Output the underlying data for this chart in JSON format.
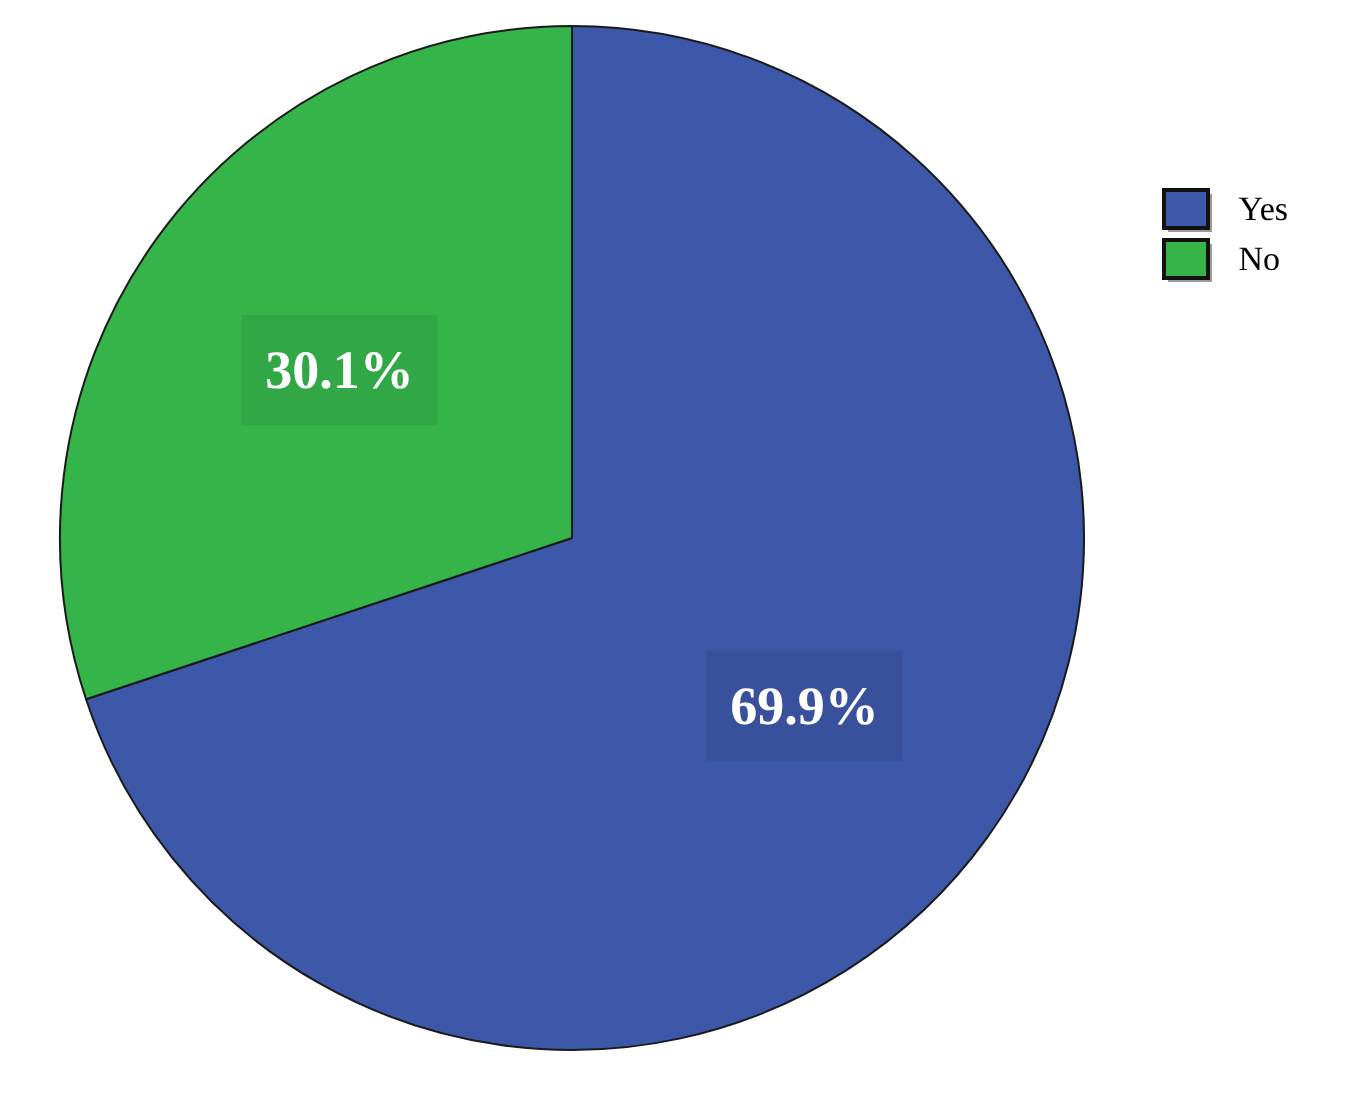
{
  "chart_data": {
    "type": "pie",
    "categories": [
      "Yes",
      "No"
    ],
    "values": [
      69.9,
      30.1
    ],
    "colors": [
      "#3d57a9",
      "#35b44a"
    ],
    "value_labels": [
      "69.9%",
      "30.1%"
    ],
    "legend": "top right"
  }
}
